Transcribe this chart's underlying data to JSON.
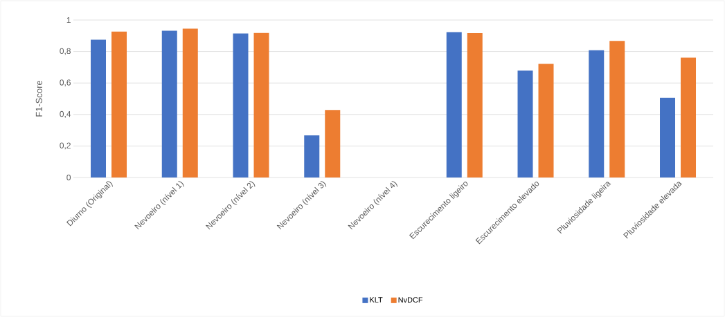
{
  "chart_data": {
    "type": "bar",
    "ylabel": "F1-Score",
    "categories": [
      "Diurno (Original)",
      "Nevoeiro (nível 1)",
      "Nevoeiro (nível 2)",
      "Nevoeiro (nível 3)",
      "Nevoeiro (nível 4)",
      "Escurecimento ligeiro",
      "Escurecimento elevado",
      "Pluviosidade ligeira",
      "Pluviosidade elevada"
    ],
    "series": [
      {
        "name": "KLT",
        "color": "#4472c4",
        "values": [
          0.875,
          0.932,
          0.914,
          0.268,
          0,
          0.923,
          0.679,
          0.808,
          0.505
        ]
      },
      {
        "name": "NvDCF",
        "color": "#ed7d31",
        "values": [
          0.926,
          0.945,
          0.918,
          0.429,
          0,
          0.917,
          0.721,
          0.867,
          0.761
        ]
      }
    ],
    "ylim": [
      0,
      1
    ],
    "yticks": [
      {
        "value": 0,
        "label": "0"
      },
      {
        "value": 0.2,
        "label": "0,2"
      },
      {
        "value": 0.4,
        "label": "0,4"
      },
      {
        "value": 0.6,
        "label": "0,6"
      },
      {
        "value": 0.8,
        "label": "0,8"
      },
      {
        "value": 1,
        "label": "1"
      }
    ],
    "grid": "y",
    "legend": "bottom"
  }
}
